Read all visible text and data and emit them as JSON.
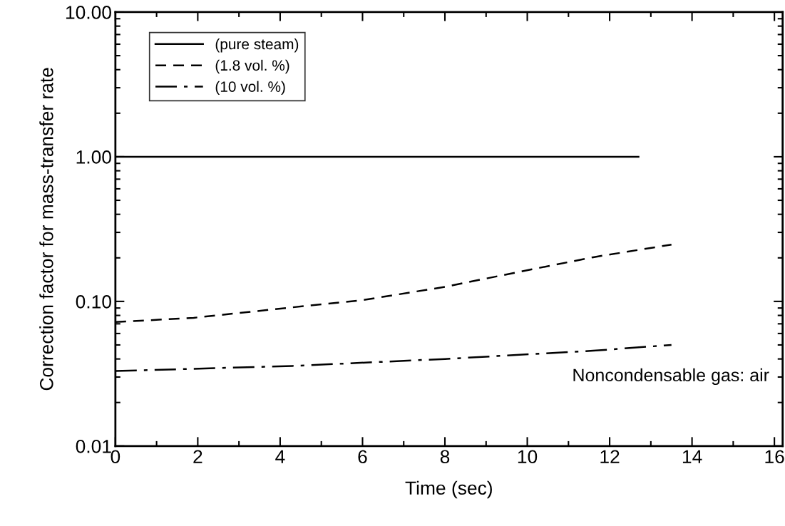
{
  "chart_data": {
    "type": "line",
    "xlabel": "Time (sec)",
    "ylabel": "Correction factor for mass-transfer rate",
    "xlim": [
      0,
      16.2
    ],
    "xticks": [
      0,
      2,
      4,
      6,
      8,
      10,
      12,
      14,
      16
    ],
    "ylim": [
      0.01,
      10
    ],
    "yticks": [
      {
        "value": 0.01,
        "label": "0.01"
      },
      {
        "value": 0.1,
        "label": "0.10"
      },
      {
        "value": 1,
        "label": "1.00"
      },
      {
        "value": 10,
        "label": "10.00"
      }
    ],
    "log": "y",
    "grid": false,
    "legend": "top left",
    "series": [
      {
        "name": "(pure steam)",
        "color": "#000000",
        "line_style": "solid",
        "x": [
          0,
          12.7
        ],
        "values": [
          1.0,
          1.0
        ]
      },
      {
        "name": "(1.8 vol. %)",
        "color": "#000000",
        "line_style": "dashed",
        "x": [
          0,
          1.9,
          4.3,
          6.0,
          8.0,
          9.8,
          11.6,
          13.5
        ],
        "values": [
          0.072,
          0.077,
          0.091,
          0.102,
          0.126,
          0.16,
          0.202,
          0.247
        ]
      },
      {
        "name": "(10 vol. %)",
        "color": "#000000",
        "line_style": "dashdot",
        "x": [
          0,
          4.3,
          8.0,
          11.6,
          13.5
        ],
        "values": [
          0.033,
          0.0358,
          0.04,
          0.0456,
          0.05
        ]
      }
    ],
    "annotations": [
      "Noncondensable gas: air"
    ]
  }
}
